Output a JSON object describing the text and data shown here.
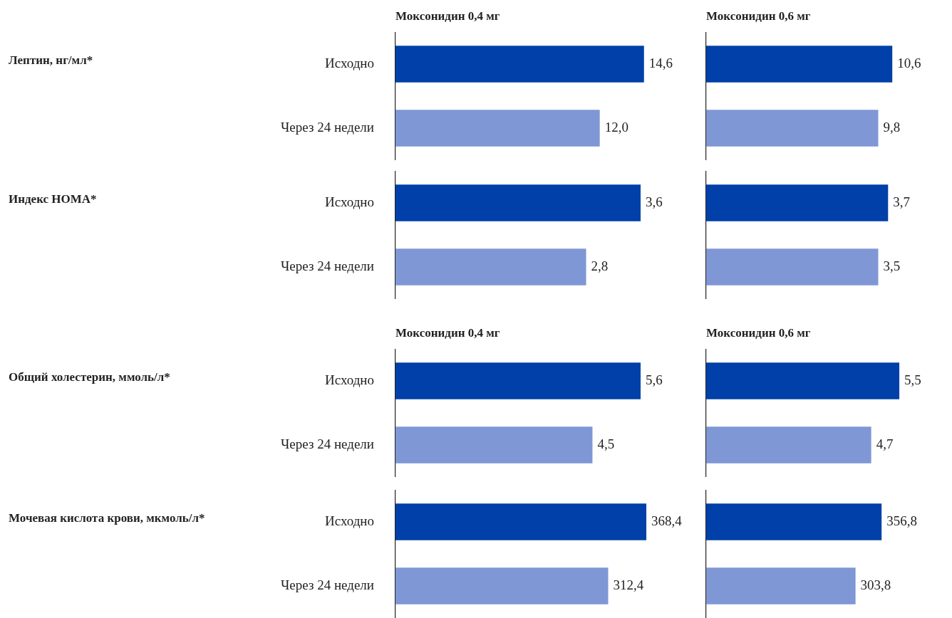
{
  "chart_data": [
    {
      "type": "bar",
      "orientation": "horizontal",
      "title": "Моксонидин 0,4 мг",
      "ylabel": "Лептин, нг/мл*",
      "categories": [
        "Исходно",
        "Через 24 недели"
      ],
      "values": [
        14.6,
        12.0
      ],
      "value_labels": [
        "14,6",
        "12,0"
      ],
      "colors": [
        "#0040a8",
        "#7f97d4"
      ]
    },
    {
      "type": "bar",
      "orientation": "horizontal",
      "title": "Моксонидин 0,6 мг",
      "categories": [
        null,
        null
      ],
      "values": [
        10.6,
        9.8
      ],
      "value_labels": [
        "10,6",
        "9,8"
      ],
      "colors": [
        "#0040a8",
        "#7f97d4"
      ]
    },
    {
      "type": "bar",
      "orientation": "horizontal",
      "ylabel": "Индекс HOMA*",
      "categories": [
        "Исходно",
        "Через 24 недели"
      ],
      "values": [
        3.6,
        2.8
      ],
      "value_labels": [
        "3,6",
        "2,8"
      ],
      "colors": [
        "#0040a8",
        "#7f97d4"
      ]
    },
    {
      "type": "bar",
      "orientation": "horizontal",
      "categories": [
        null,
        null
      ],
      "values": [
        3.7,
        3.5
      ],
      "value_labels": [
        "3,7",
        "3,5"
      ],
      "colors": [
        "#0040a8",
        "#7f97d4"
      ]
    },
    {
      "type": "bar",
      "orientation": "horizontal",
      "title": "Моксонидин 0,4 мг",
      "ylabel": "Общий холестерин, ммоль/л*",
      "categories": [
        "Исходно",
        "Через 24 недели"
      ],
      "values": [
        5.6,
        4.5
      ],
      "value_labels": [
        "5,6",
        "4,5"
      ],
      "colors": [
        "#0040a8",
        "#7f97d4"
      ]
    },
    {
      "type": "bar",
      "orientation": "horizontal",
      "title": "Моксонидин 0,6 мг",
      "categories": [
        null,
        null
      ],
      "values": [
        5.5,
        4.7
      ],
      "value_labels": [
        "5,5",
        "4,7"
      ],
      "colors": [
        "#0040a8",
        "#7f97d4"
      ]
    },
    {
      "type": "bar",
      "orientation": "horizontal",
      "ylabel": "Мочевая кислота крови, мкмоль/л*",
      "categories": [
        "Исходно",
        "Через 24 недели"
      ],
      "values": [
        368.4,
        312.4
      ],
      "value_labels": [
        "368,4",
        "312,4"
      ],
      "colors": [
        "#0040a8",
        "#7f97d4"
      ]
    },
    {
      "type": "bar",
      "orientation": "horizontal",
      "categories": [
        null,
        null
      ],
      "values": [
        356.8,
        303.8
      ],
      "value_labels": [
        "356,8",
        "303,8"
      ],
      "colors": [
        "#0040a8",
        "#7f97d4"
      ]
    }
  ]
}
